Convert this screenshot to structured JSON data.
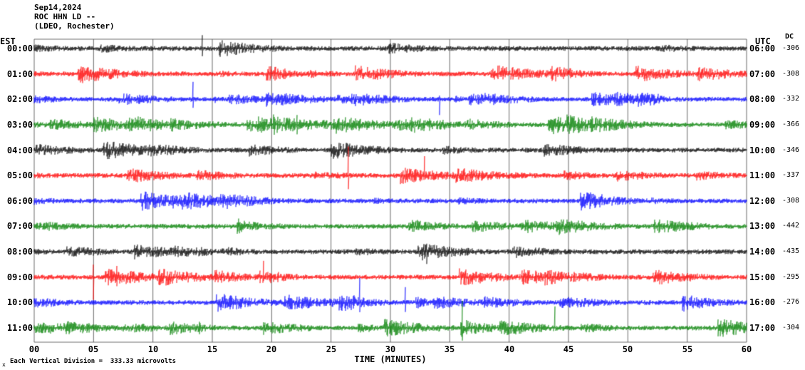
{
  "header": {
    "date": "Sep14,2024",
    "station": "ROC HHN LD --",
    "network": "(LDEO, Rochester)"
  },
  "axes": {
    "left_label": "EST",
    "right_label": "UTC",
    "dc_label": "DC",
    "x_label": "TIME (MINUTES)"
  },
  "footer": {
    "marker": "x",
    "note": "Each Vertical Division =  333.33 microvolts"
  },
  "chart_data": {
    "type": "line",
    "subtype": "seismogram-helicorder",
    "title": "ROC HHN LD -- (LDEO, Rochester) Sep14,2024",
    "xlabel": "TIME (MINUTES)",
    "x_range_minutes": [
      0,
      60
    ],
    "x_tick_interval_minutes": 5,
    "x_ticks": [
      "00",
      "05",
      "10",
      "15",
      "20",
      "25",
      "30",
      "35",
      "40",
      "45",
      "50",
      "55",
      "60"
    ],
    "grid": "vertical lines every 5 minutes",
    "vertical_division_microvolts": 333.33,
    "trace_color_cycle": [
      "black",
      "red",
      "blue",
      "green"
    ],
    "colors": {
      "black": "#000000",
      "red": "#ff0000",
      "blue": "#0000ff",
      "green": "#008000"
    },
    "rows": [
      {
        "est": "00:00",
        "utc": "06:00",
        "dc": "-306",
        "color": "black"
      },
      {
        "est": "01:00",
        "utc": "07:00",
        "dc": "-308",
        "color": "red"
      },
      {
        "est": "02:00",
        "utc": "08:00",
        "dc": "-332",
        "color": "blue"
      },
      {
        "est": "03:00",
        "utc": "09:00",
        "dc": "-366",
        "color": "green"
      },
      {
        "est": "04:00",
        "utc": "10:00",
        "dc": "-346",
        "color": "black"
      },
      {
        "est": "05:00",
        "utc": "11:00",
        "dc": "-337",
        "color": "red"
      },
      {
        "est": "06:00",
        "utc": "12:00",
        "dc": "-308",
        "color": "blue"
      },
      {
        "est": "07:00",
        "utc": "13:00",
        "dc": "-442",
        "color": "green"
      },
      {
        "est": "08:00",
        "utc": "14:00",
        "dc": "-435",
        "color": "black"
      },
      {
        "est": "09:00",
        "utc": "15:00",
        "dc": "-295",
        "color": "red"
      },
      {
        "est": "10:00",
        "utc": "16:00",
        "dc": "-276",
        "color": "blue"
      },
      {
        "est": "11:00",
        "utc": "17:00",
        "dc": "-304",
        "color": "green"
      }
    ]
  }
}
